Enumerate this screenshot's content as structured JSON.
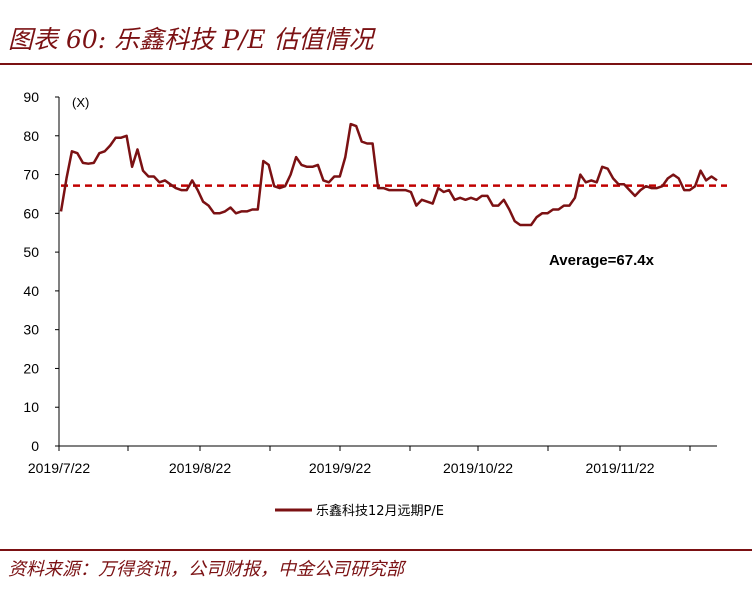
{
  "header": {
    "title": "图表 60:  乐鑫科技 P/E 估值情况"
  },
  "footer": {
    "source": "资料来源：万得资讯，公司财报，中金公司研究部"
  },
  "colors": {
    "series": "#7b1113",
    "average": "#c00000",
    "accent": "#7b1113"
  },
  "chart_data": {
    "type": "line",
    "unit_label": "(X)",
    "ylim": [
      0,
      90
    ],
    "y_ticks": [
      "0",
      "10",
      "20",
      "30",
      "40",
      "50",
      "60",
      "70",
      "80",
      "90"
    ],
    "x_tick_labels": [
      "2019/7/22",
      "2019/8/22",
      "2019/9/22",
      "2019/10/22",
      "2019/11/22"
    ],
    "grid": false,
    "legend_position": "bottom",
    "series": [
      {
        "name": "乐鑫科技12月远期P/E",
        "values": [
          60.5,
          69,
          76,
          75.5,
          73,
          72.8,
          73,
          75.5,
          76,
          77.5,
          79.5,
          79.5,
          80,
          72,
          76.5,
          71,
          69.5,
          69.5,
          68,
          68.5,
          67.5,
          66.5,
          66,
          66,
          68.5,
          66,
          63,
          62,
          60,
          60,
          60.5,
          61.5,
          60,
          60.5,
          60.5,
          61,
          61,
          73.5,
          72.5,
          67,
          66.5,
          67,
          70,
          74.5,
          72.5,
          72,
          72,
          72.5,
          68.5,
          68,
          69.5,
          69.5,
          74.5,
          83,
          82.5,
          78.5,
          78,
          78,
          66.5,
          66.5,
          66,
          66,
          66,
          66,
          65.5,
          62,
          63.5,
          63,
          62.5,
          66.5,
          65.5,
          66,
          63.5,
          64,
          63.5,
          64,
          63.5,
          64.5,
          64.5,
          62,
          62,
          63.5,
          61,
          58,
          57,
          57,
          57,
          59,
          60,
          60,
          61,
          61,
          62,
          62,
          64,
          70,
          68,
          68.5,
          68,
          72,
          71.5,
          69,
          67.5,
          67.5,
          66,
          64.5,
          66,
          67,
          66.5,
          66.5,
          67,
          69,
          70,
          69,
          66,
          66,
          67,
          71,
          68.5,
          69.5,
          68.5
        ]
      }
    ],
    "average": {
      "value": 67.4,
      "label": "Average=67.4x"
    }
  }
}
